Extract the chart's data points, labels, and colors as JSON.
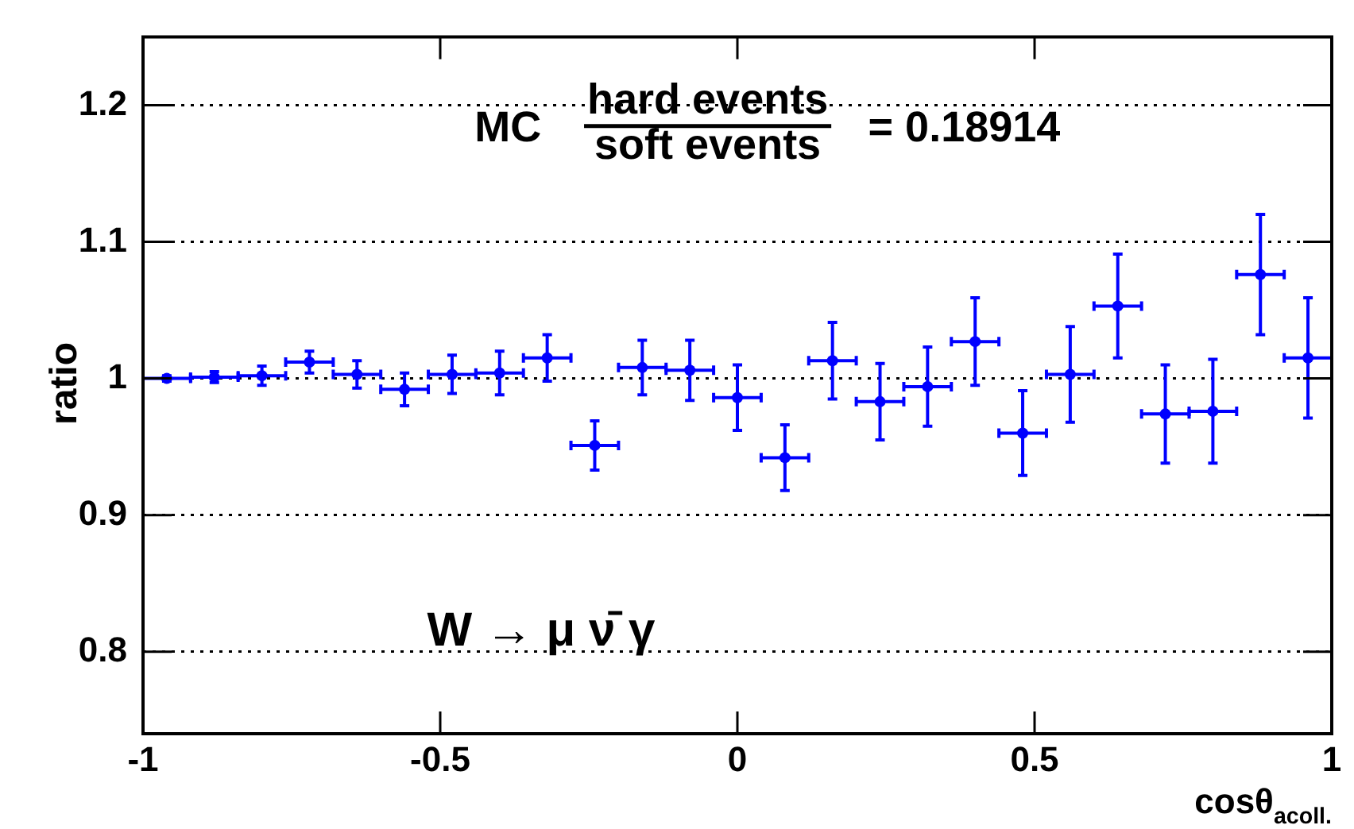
{
  "chart_data": {
    "type": "scatter",
    "xlabel": "cosθ$_{acoll.}$",
    "ylabel": "ratio",
    "annotations": [
      "MC",
      "hard events",
      "soft events",
      "= 0.18914",
      "W → μ ν̄ γ"
    ],
    "x": [
      -0.96,
      -0.88,
      -0.8,
      -0.72,
      -0.64,
      -0.56,
      -0.48,
      -0.4,
      -0.32,
      -0.24,
      -0.16,
      -0.08,
      0,
      0.08,
      0.16,
      0.24,
      0.32,
      0.4,
      0.48,
      0.56,
      0.64,
      0.72,
      0.8,
      0.88,
      0.96
    ],
    "series": [
      {
        "color": "#0000ff",
        "values": [
          1.0,
          1.001,
          1.002,
          1.012,
          1.003,
          0.992,
          1.003,
          1.004,
          1.015,
          0.951,
          1.008,
          1.006,
          0.986,
          0.942,
          1.013,
          0.983,
          0.994,
          1.027,
          0.96,
          1.003,
          1.053,
          0.974,
          0.976,
          1.076,
          1.015
        ],
        "errors": [
          0.002,
          0.004,
          0.007,
          0.008,
          0.01,
          0.012,
          0.014,
          0.016,
          0.017,
          0.018,
          0.02,
          0.022,
          0.024,
          0.024,
          0.028,
          0.028,
          0.029,
          0.032,
          0.031,
          0.035,
          0.038,
          0.036,
          0.038,
          0.044,
          0.044
        ],
        "xerrors": [
          0.04,
          0.04,
          0.04,
          0.04,
          0.04,
          0.04,
          0.04,
          0.04,
          0.04,
          0.04,
          0.04,
          0.04,
          0.04,
          0.04,
          0.04,
          0.04,
          0.04,
          0.04,
          0.04,
          0.04,
          0.04,
          0.04,
          0.04,
          0.04,
          0.04
        ]
      }
    ],
    "xlim": [
      -1,
      1
    ],
    "xticks": [
      -1,
      -0.5,
      0,
      0.5,
      1
    ],
    "ylim": [
      0.74,
      1.25
    ],
    "yticks": [
      0.8,
      0.9,
      1,
      1.1,
      1.2
    ],
    "grid": "y",
    "line_style": "dotted",
    "marker": "circle",
    "legend": false
  }
}
